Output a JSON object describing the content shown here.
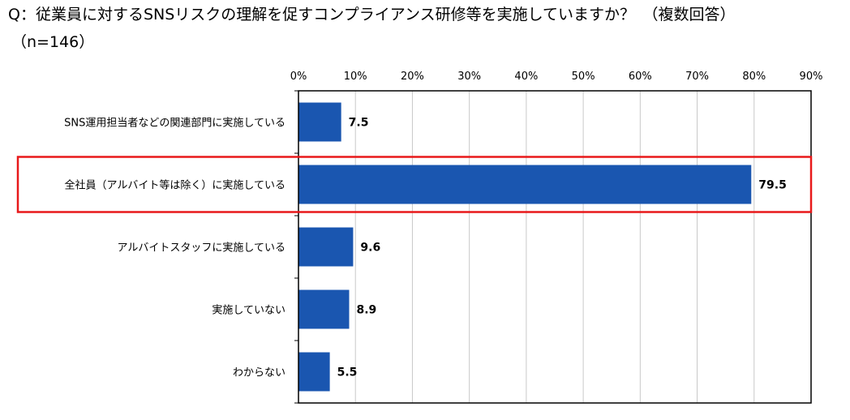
{
  "chart_data": {
    "type": "bar",
    "orientation": "horizontal",
    "title": "Q：従業員に対するSNSリスクの理解を促すコンプライアンス研修等を実施していますか？　（複数回答）",
    "subtitle": "（n=146）",
    "categories": [
      "SNS運用担当者などの関連部門に実施している",
      "全社員（アルバイト等は除く）に実施している",
      "アルバイトスタッフに実施している",
      "実施していない",
      "わからない"
    ],
    "values": [
      7.5,
      79.5,
      9.6,
      8.9,
      5.5
    ],
    "xlim": [
      0,
      90
    ],
    "tick_labels": [
      "0%",
      "10%",
      "20%",
      "30%",
      "40%",
      "50%",
      "60%",
      "70%",
      "80%",
      "90%"
    ],
    "tick_values": [
      0,
      10,
      20,
      30,
      40,
      50,
      60,
      70,
      80,
      90
    ],
    "grid": true,
    "highlight_index": 1,
    "bar_color": "#1A56B0",
    "highlight_color": "#E8191A"
  }
}
